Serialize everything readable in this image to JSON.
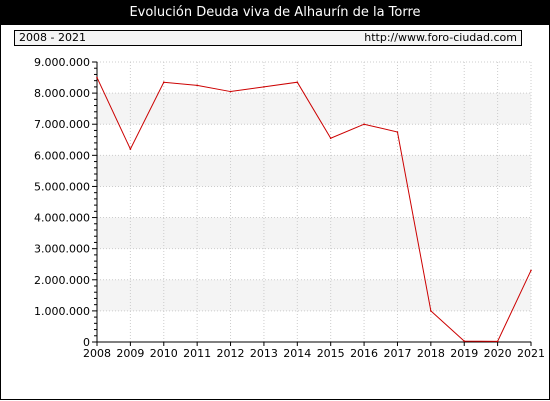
{
  "header": {
    "title": "Evolución Deuda viva de Alhaurín de la Torre",
    "period": "2008 - 2021",
    "url": "http://www.foro-ciudad.com"
  },
  "colors": {
    "title_bar_bg": "#000000",
    "line": "#cc0000",
    "band_shade": "#f4f4f4",
    "grid": "#cccccc"
  },
  "chart_data": {
    "type": "line",
    "title": "Evolución Deuda viva de Alhaurín de la Torre",
    "xlabel": "",
    "ylabel": "",
    "categories": [
      "2008",
      "2009",
      "2010",
      "2011",
      "2012",
      "2013",
      "2014",
      "2015",
      "2016",
      "2017",
      "2018",
      "2019",
      "2020",
      "2021"
    ],
    "series": [
      {
        "values": [
          8500000,
          6200000,
          8350000,
          8250000,
          8050000,
          8200000,
          8350000,
          6550000,
          7000000,
          6750000,
          1000000,
          30000,
          20000,
          2300000
        ]
      }
    ],
    "ylim": [
      0,
      9000000
    ],
    "yticks": [
      0,
      1000000,
      2000000,
      3000000,
      4000000,
      5000000,
      6000000,
      7000000,
      8000000,
      9000000
    ],
    "ytick_labels": [
      "0",
      "1.000.000",
      "2.000.000",
      "3.000.000",
      "4.000.000",
      "5.000.000",
      "6.000.000",
      "7.000.000",
      "8.000.000",
      "9.000.000"
    ],
    "grid": true,
    "legend": "none"
  }
}
